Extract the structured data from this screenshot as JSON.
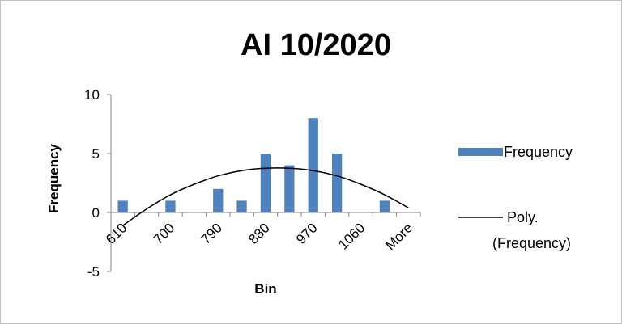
{
  "chart_data": {
    "type": "bar",
    "title": "AI 10/2020",
    "xlabel": "Bin",
    "ylabel": "Frequency",
    "ylim": [
      -5,
      10
    ],
    "yticks": [
      "10",
      "5",
      "0",
      "-5"
    ],
    "categories": [
      "610",
      "",
      "700",
      "",
      "790",
      "",
      "880",
      "",
      "970",
      "",
      "1060",
      "",
      "More"
    ],
    "series": [
      {
        "name": "Frequency",
        "type": "bar",
        "color": "#4f81bd",
        "values": [
          1,
          0,
          1,
          0,
          2,
          1,
          5,
          4,
          8,
          5,
          0,
          1,
          0
        ]
      },
      {
        "name": "Poly. (Frequency)",
        "type": "trendline",
        "color": "#000000",
        "values": [
          -1.1,
          0.3,
          1.5,
          2.4,
          3.1,
          3.55,
          3.75,
          3.75,
          3.55,
          3.1,
          2.4,
          1.5,
          0.4
        ]
      }
    ],
    "legend": {
      "position": "right",
      "items": [
        {
          "label": "Frequency"
        },
        {
          "label": "Poly.",
          "label2": "(Frequency)"
        }
      ]
    },
    "grid": false
  }
}
